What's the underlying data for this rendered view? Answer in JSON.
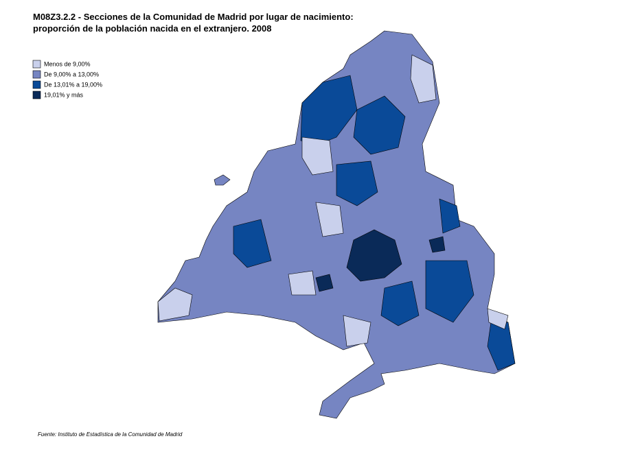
{
  "title": [
    "M08Z3.2.2 - Secciones de la Comunidad de Madrid por lugar de nacimiento:",
    "proporción de la población nacida en el extranjero. 2008"
  ],
  "legend": [
    {
      "label": "Menos de 9,00%",
      "color": "#c9d0ec"
    },
    {
      "label": "De 9,00% a 13,00%",
      "color": "#7685c2"
    },
    {
      "label": "De 13,01%  a 19,00%",
      "color": "#0a4a98"
    },
    {
      "label": "19,01%  y más",
      "color": "#0a2a58"
    }
  ],
  "source": "Fuente: Instituto de Estadística de la Comunidad de Madrid"
}
